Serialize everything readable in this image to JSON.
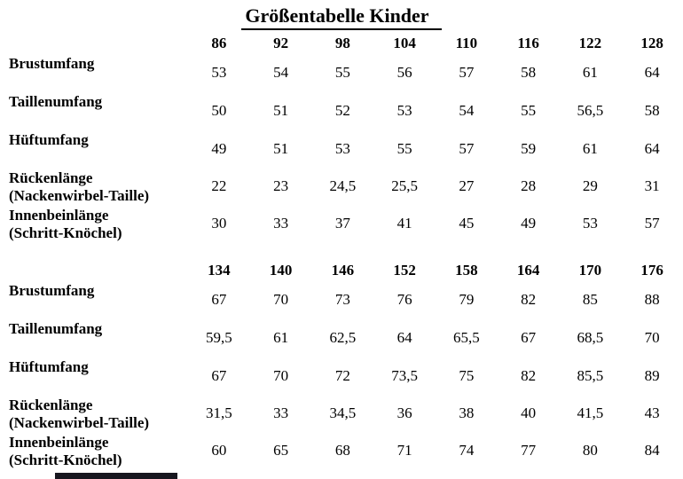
{
  "page": {
    "title": "Größentabelle Kinder",
    "background": "#ffffff",
    "text_color": "#000000"
  },
  "table": {
    "sections": [
      {
        "sizes": [
          "86",
          "92",
          "98",
          "104",
          "110",
          "116",
          "122",
          "128"
        ],
        "rows": [
          {
            "label_lines": [
              "Brustumfang"
            ],
            "values": [
              "53",
              "54",
              "55",
              "56",
              "57",
              "58",
              "61",
              "64"
            ]
          },
          {
            "label_lines": [
              "Taillenumfang"
            ],
            "values": [
              "50",
              "51",
              "52",
              "53",
              "54",
              "55",
              "56,5",
              "58"
            ]
          },
          {
            "label_lines": [
              "Hüftumfang"
            ],
            "values": [
              "49",
              "51",
              "53",
              "55",
              "57",
              "59",
              "61",
              "64"
            ]
          },
          {
            "label_lines": [
              "Rückenlänge",
              "(Nackenwirbel-Taille)"
            ],
            "values": [
              "22",
              "23",
              "24,5",
              "25,5",
              "27",
              "28",
              "29",
              "31"
            ]
          },
          {
            "label_lines": [
              "Innenbeinlänge",
              "(Schritt-Knöchel)"
            ],
            "values": [
              "30",
              "33",
              "37",
              "41",
              "45",
              "49",
              "53",
              "57"
            ]
          }
        ]
      },
      {
        "sizes": [
          "134",
          "140",
          "146",
          "152",
          "158",
          "164",
          "170",
          "176"
        ],
        "rows": [
          {
            "label_lines": [
              "Brustumfang"
            ],
            "values": [
              "67",
              "70",
              "73",
              "76",
              "79",
              "82",
              "85",
              "88"
            ]
          },
          {
            "label_lines": [
              "Taillenumfang"
            ],
            "values": [
              "59,5",
              "61",
              "62,5",
              "64",
              "65,5",
              "67",
              "68,5",
              "70"
            ]
          },
          {
            "label_lines": [
              "Hüftumfang"
            ],
            "values": [
              "67",
              "70",
              "72",
              "73,5",
              "75",
              "82",
              "85,5",
              "89"
            ]
          },
          {
            "label_lines": [
              "Rückenlänge",
              "(Nackenwirbel-Taille)"
            ],
            "values": [
              "31,5",
              "33",
              "34,5",
              "36",
              "38",
              "40",
              "41,5",
              "43"
            ]
          },
          {
            "label_lines": [
              "Innenbeinlänge",
              "(Schritt-Knöchel)"
            ],
            "values": [
              "60",
              "65",
              "68",
              "71",
              "74",
              "77",
              "80",
              "84"
            ]
          }
        ]
      }
    ]
  },
  "footer": {
    "bottom_bar_color": "#17171f"
  }
}
